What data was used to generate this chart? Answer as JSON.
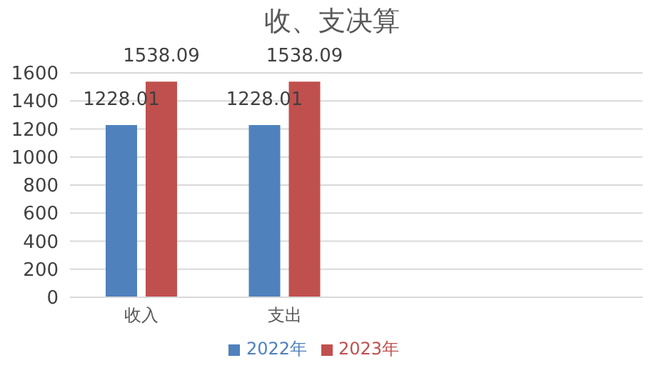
{
  "chart_data": {
    "type": "bar",
    "title": "收、支决算",
    "categories": [
      "收入",
      "支出",
      null,
      null
    ],
    "series": [
      {
        "name": "2022年",
        "color": "#4f81bd",
        "values": [
          1228.01,
          1228.01,
          null,
          null
        ]
      },
      {
        "name": "2023年",
        "color": "#c0504d",
        "values": [
          1538.09,
          1538.09,
          null,
          null
        ]
      }
    ],
    "ylim": [
      0,
      1600
    ],
    "yticks": [
      0,
      200,
      400,
      600,
      800,
      1000,
      1200,
      1400,
      1600
    ],
    "grid": "y",
    "legend": "bottom",
    "data_labels": true
  }
}
